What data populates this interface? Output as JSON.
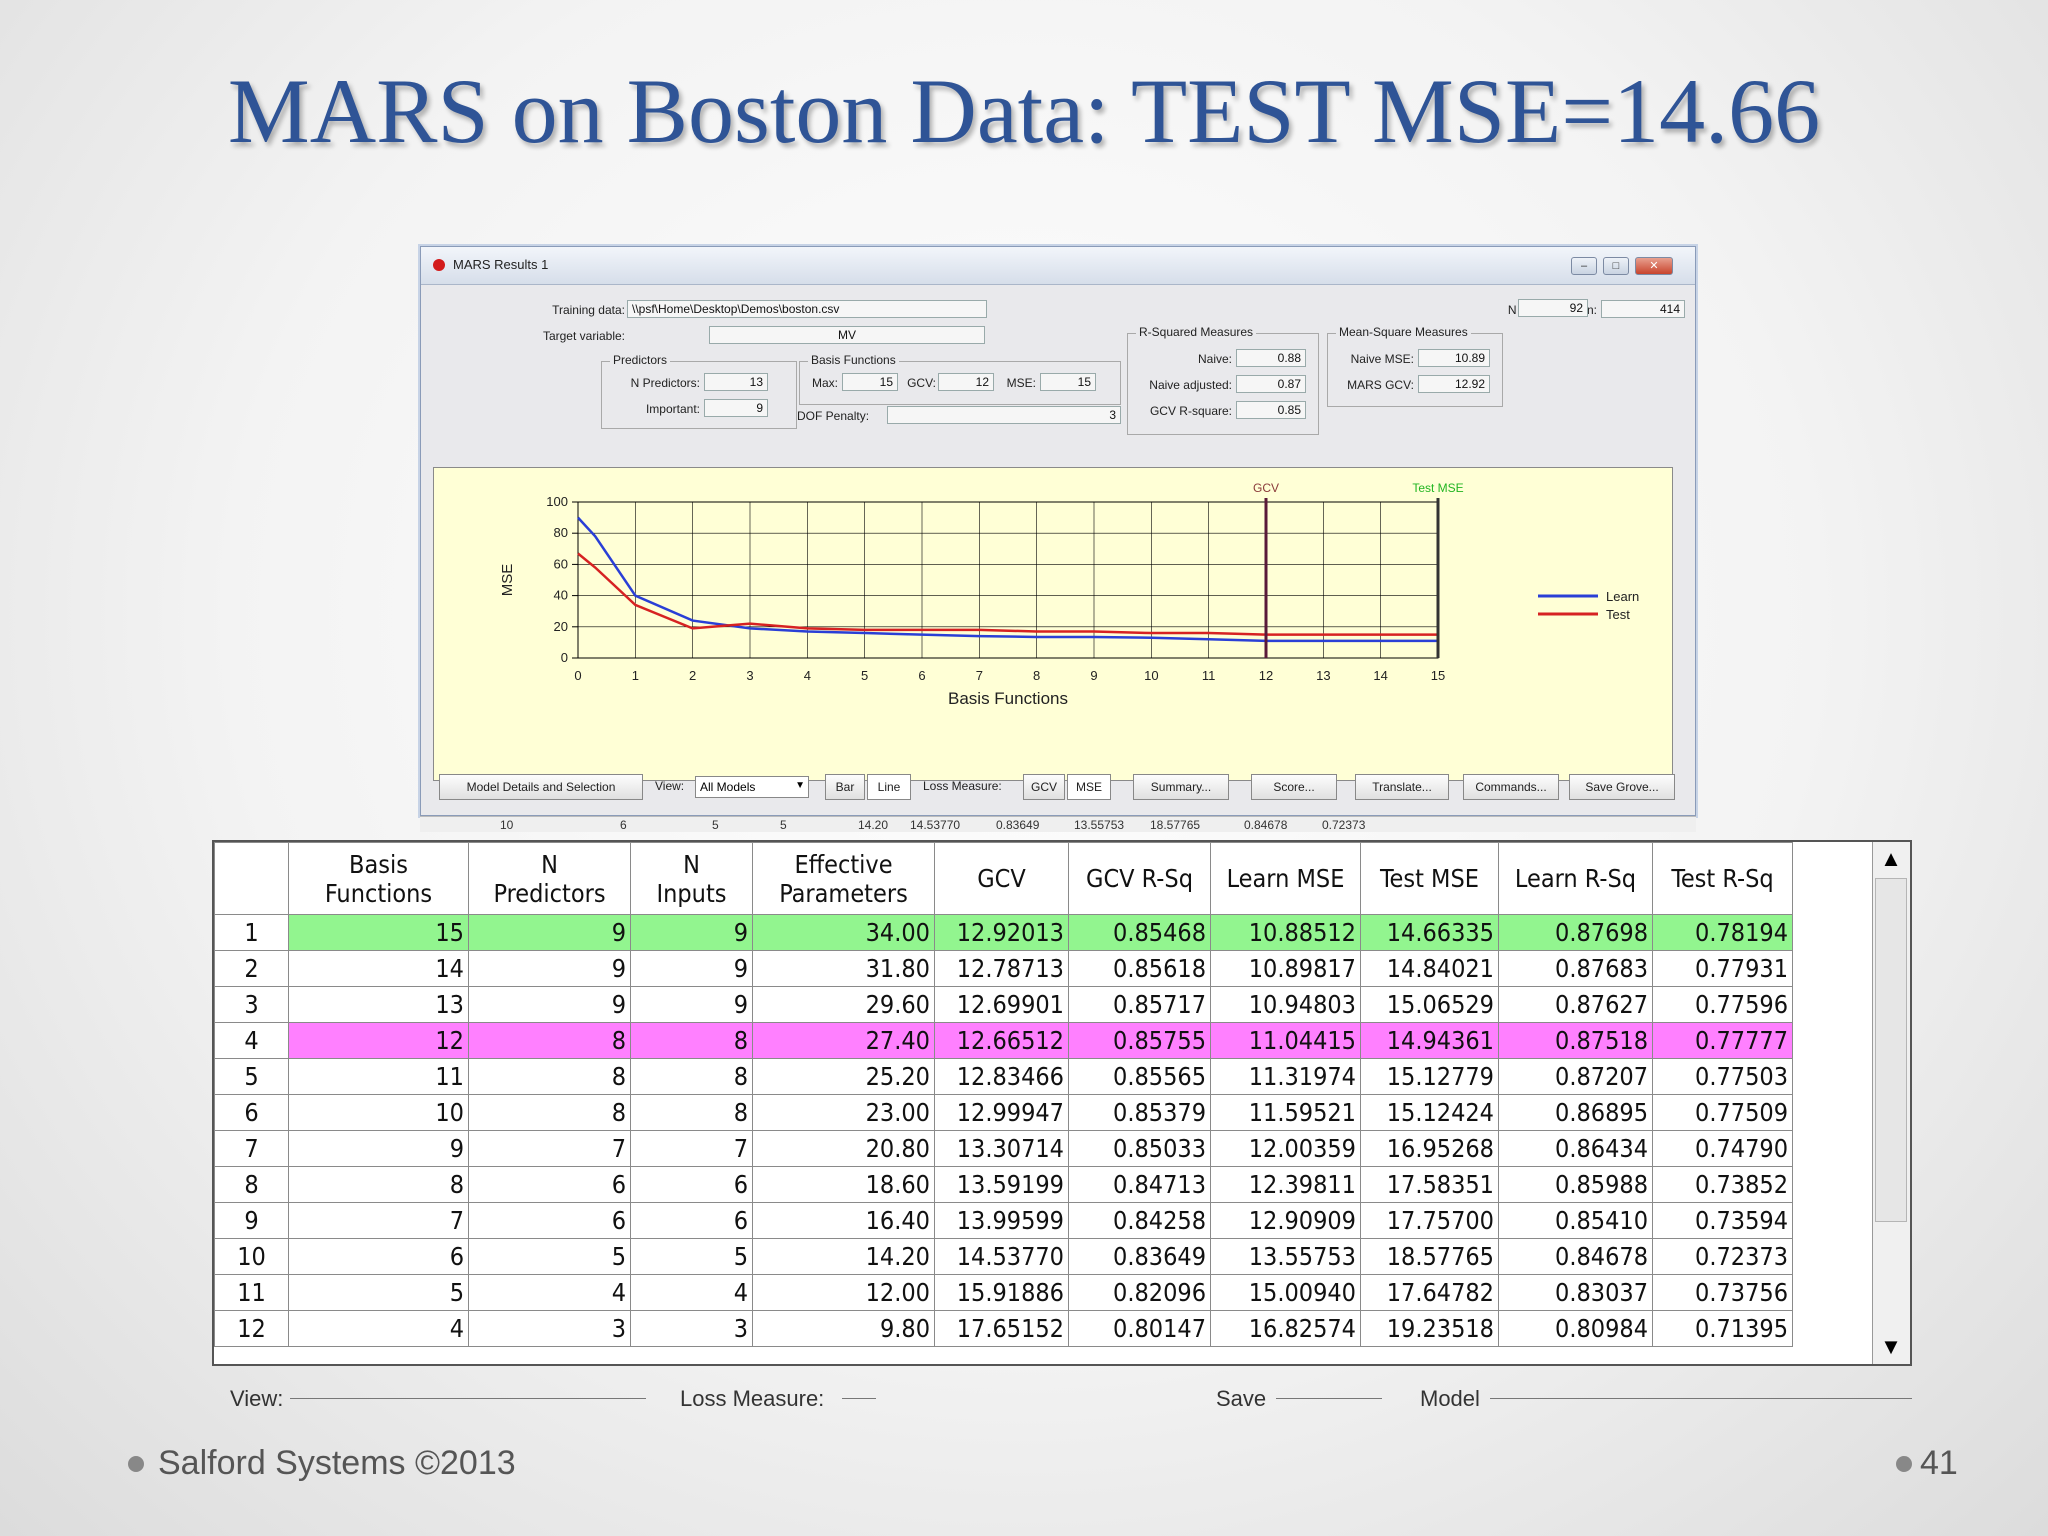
{
  "slide": {
    "title": "MARS on Boston Data: TEST MSE=14.66",
    "footer_left": "Salford Systems  ©2013",
    "page_number": "41"
  },
  "window": {
    "title": "MARS Results 1",
    "fields": {
      "training_data_label": "Training data:",
      "training_data_value": "\\\\psf\\Home\\Desktop\\Demos\\boston.csv",
      "target_variable_label": "Target variable:",
      "target_variable_value": "MV",
      "n_learn_label": "N Learn:",
      "n_learn_value": "414",
      "n_test_label": "N Test:",
      "n_test_value": "92",
      "predictors_group": "Predictors",
      "n_predictors_label": "N Predictors:",
      "n_predictors_value": "13",
      "important_label": "Important:",
      "important_value": "9",
      "basis_group": "Basis Functions",
      "max_label": "Max:",
      "max_value": "15",
      "gcv_label": "GCV:",
      "gcv_value": "12",
      "mse_label": "MSE:",
      "mse_value": "15",
      "dof_label": "DOF Penalty:",
      "dof_value": "3",
      "rsq_group": "R-Squared Measures",
      "naive_label": "Naive:",
      "naive_value": "0.88",
      "naive_adj_label": "Naive adjusted:",
      "naive_adj_value": "0.87",
      "gcv_rsq_label": "GCV R-square:",
      "gcv_rsq_value": "0.85",
      "msq_group": "Mean-Square Measures",
      "naive_mse_label": "Naive MSE:",
      "naive_mse_value": "10.89",
      "mars_gcv_label": "MARS GCV:",
      "mars_gcv_value": "12.92"
    },
    "toolbar": {
      "model_details": "Model Details and Selection",
      "view_label": "View:",
      "view_value": "All Models",
      "bar": "Bar",
      "line": "Line",
      "loss_label": "Loss Measure:",
      "gcv": "GCV",
      "mse": "MSE",
      "summary": "Summary...",
      "score": "Score...",
      "translate": "Translate...",
      "commands": "Commands...",
      "save_grove": "Save Grove..."
    },
    "peek_row": [
      "10",
      "6",
      "5",
      "5",
      "14.20",
      "14.53770",
      "0.83649",
      "13.55753",
      "18.57765",
      "0.84678",
      "0.72373"
    ]
  },
  "chart_data": {
    "type": "line",
    "title": "",
    "xlabel": "Basis Functions",
    "ylabel": "MSE",
    "xlim": [
      0,
      15
    ],
    "ylim": [
      0,
      100
    ],
    "x": [
      0,
      0.3,
      1,
      2,
      3,
      4,
      5,
      6,
      7,
      8,
      9,
      10,
      11,
      12,
      13,
      14,
      15
    ],
    "xticks": [
      "0",
      "1",
      "2",
      "3",
      "4",
      "5",
      "6",
      "7",
      "8",
      "9",
      "10",
      "11",
      "12",
      "13",
      "14",
      "15"
    ],
    "yticks": [
      "0",
      "20",
      "40",
      "60",
      "80",
      "100"
    ],
    "series": [
      {
        "name": "Learn",
        "color": "#2a3fd6",
        "values": [
          90,
          78,
          40,
          24,
          19,
          17,
          16,
          15,
          14,
          13.5,
          13.5,
          13,
          12,
          11,
          11,
          11,
          11
        ]
      },
      {
        "name": "Test",
        "color": "#d62222",
        "values": [
          67,
          58,
          34,
          19,
          22,
          19,
          18,
          18,
          18,
          17,
          17,
          16,
          16,
          15,
          15,
          15,
          15
        ]
      }
    ],
    "markers": [
      {
        "label": "GCV",
        "x": 12,
        "color": "#5a1a3a",
        "label_color": "#8a3a3a"
      },
      {
        "label": "Test MSE",
        "x": 15,
        "color": "#333333",
        "label_color": "#22b522"
      }
    ],
    "grid": true,
    "legend": "right"
  },
  "table": {
    "headers": [
      {
        "l1": "Basis",
        "l2": "Functions"
      },
      {
        "l1": "N",
        "l2": "Predictors"
      },
      {
        "l1": "N",
        "l2": "Inputs"
      },
      {
        "l1": "Effective",
        "l2": "Parameters"
      },
      {
        "l1": "GCV",
        "l2": ""
      },
      {
        "l1": "GCV R-Sq",
        "l2": ""
      },
      {
        "l1": "Learn MSE",
        "l2": ""
      },
      {
        "l1": "Test MSE",
        "l2": ""
      },
      {
        "l1": "Learn R-Sq",
        "l2": ""
      },
      {
        "l1": "Test R-Sq",
        "l2": ""
      }
    ],
    "rows": [
      {
        "n": "1",
        "hl": "green",
        "cells": [
          "15",
          "9",
          "9",
          "34.00",
          "12.92013",
          "0.85468",
          "10.88512",
          "14.66335",
          "0.87698",
          "0.78194"
        ]
      },
      {
        "n": "2",
        "hl": "",
        "cells": [
          "14",
          "9",
          "9",
          "31.80",
          "12.78713",
          "0.85618",
          "10.89817",
          "14.84021",
          "0.87683",
          "0.77931"
        ]
      },
      {
        "n": "3",
        "hl": "",
        "cells": [
          "13",
          "9",
          "9",
          "29.60",
          "12.69901",
          "0.85717",
          "10.94803",
          "15.06529",
          "0.87627",
          "0.77596"
        ]
      },
      {
        "n": "4",
        "hl": "pink",
        "cells": [
          "12",
          "8",
          "8",
          "27.40",
          "12.66512",
          "0.85755",
          "11.04415",
          "14.94361",
          "0.87518",
          "0.77777"
        ]
      },
      {
        "n": "5",
        "hl": "",
        "cells": [
          "11",
          "8",
          "8",
          "25.20",
          "12.83466",
          "0.85565",
          "11.31974",
          "15.12779",
          "0.87207",
          "0.77503"
        ]
      },
      {
        "n": "6",
        "hl": "",
        "cells": [
          "10",
          "8",
          "8",
          "23.00",
          "12.99947",
          "0.85379",
          "11.59521",
          "15.12424",
          "0.86895",
          "0.77509"
        ]
      },
      {
        "n": "7",
        "hl": "",
        "cells": [
          "9",
          "7",
          "7",
          "20.80",
          "13.30714",
          "0.85033",
          "12.00359",
          "16.95268",
          "0.86434",
          "0.74790"
        ]
      },
      {
        "n": "8",
        "hl": "",
        "cells": [
          "8",
          "6",
          "6",
          "18.60",
          "13.59199",
          "0.84713",
          "12.39811",
          "17.58351",
          "0.85988",
          "0.73852"
        ]
      },
      {
        "n": "9",
        "hl": "",
        "cells": [
          "7",
          "6",
          "6",
          "16.40",
          "13.99599",
          "0.84258",
          "12.90909",
          "17.75700",
          "0.85410",
          "0.73594"
        ]
      },
      {
        "n": "10",
        "hl": "",
        "cells": [
          "6",
          "5",
          "5",
          "14.20",
          "14.53770",
          "0.83649",
          "13.55753",
          "18.57765",
          "0.84678",
          "0.72373"
        ]
      },
      {
        "n": "11",
        "hl": "",
        "cells": [
          "5",
          "4",
          "4",
          "12.00",
          "15.91886",
          "0.82096",
          "15.00940",
          "17.64782",
          "0.83037",
          "0.73756"
        ]
      },
      {
        "n": "12",
        "hl": "",
        "cells": [
          "4",
          "3",
          "3",
          "9.80",
          "17.65152",
          "0.80147",
          "16.82574",
          "19.23518",
          "0.80984",
          "0.71395"
        ]
      }
    ]
  },
  "below_labels": {
    "view": "View:",
    "loss": "Loss Measure:",
    "save": "Save",
    "model": "Model"
  }
}
